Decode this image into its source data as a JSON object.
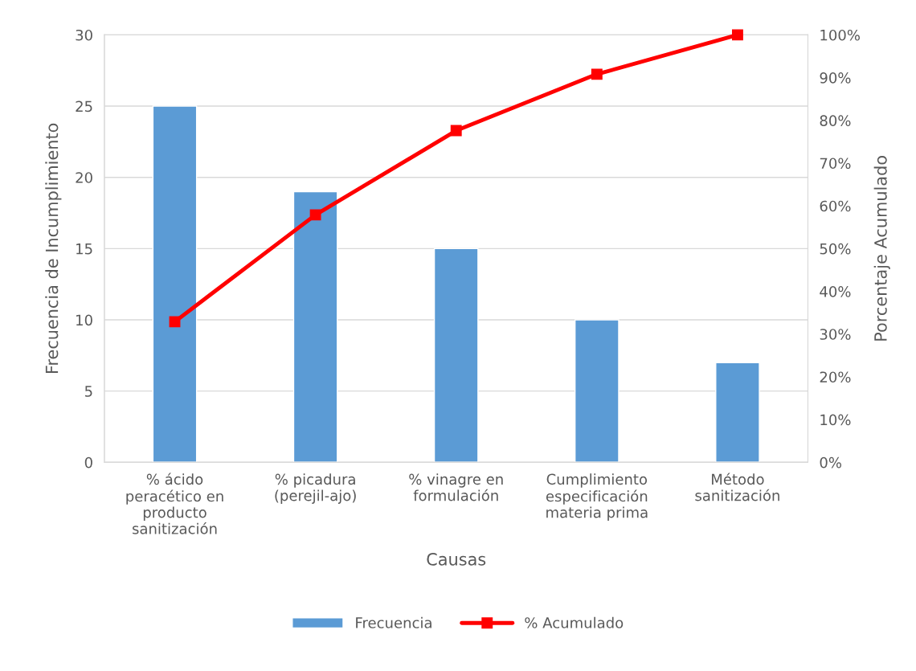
{
  "chart_data": {
    "type": "bar",
    "xlabel": "Causas",
    "ylabel": "Frecuencia de Incumplimiento",
    "y2label": "Porcentaje Acumulado",
    "categories": [
      "% ácido\nperacético en\nproducto\nsanitización",
      "% picadura\n(perejil-ajo)",
      "% vinagre en\nformulación",
      "Cumplimiento\nespecificación\nmateria prima",
      "Método\nsanitización"
    ],
    "series": [
      {
        "name": "Frecuencia",
        "color": "#5b9bd5",
        "values": [
          25,
          19,
          15,
          10,
          7
        ]
      },
      {
        "name": "% Acumulado",
        "type": "line",
        "axis": "y2",
        "color": "#ff0000",
        "marker": "square",
        "values": [
          32.9,
          57.9,
          77.6,
          90.8,
          100
        ]
      }
    ],
    "ylim": [
      0,
      30
    ],
    "yticks": [
      0,
      5,
      10,
      15,
      20,
      25,
      30
    ],
    "y2lim": [
      0,
      100
    ],
    "y2ticks": [
      {
        "value": 0,
        "label": "0%"
      },
      {
        "value": 10,
        "label": "10%"
      },
      {
        "value": 20,
        "label": "20%"
      },
      {
        "value": 30,
        "label": "30%"
      },
      {
        "value": 40,
        "label": "40%"
      },
      {
        "value": 50,
        "label": "50%"
      },
      {
        "value": 60,
        "label": "60%"
      },
      {
        "value": 70,
        "label": "70%"
      },
      {
        "value": 80,
        "label": "80%"
      },
      {
        "value": 90,
        "label": "90%"
      },
      {
        "value": 100,
        "label": "100%"
      }
    ],
    "grid": "y",
    "legend": "bottom"
  }
}
